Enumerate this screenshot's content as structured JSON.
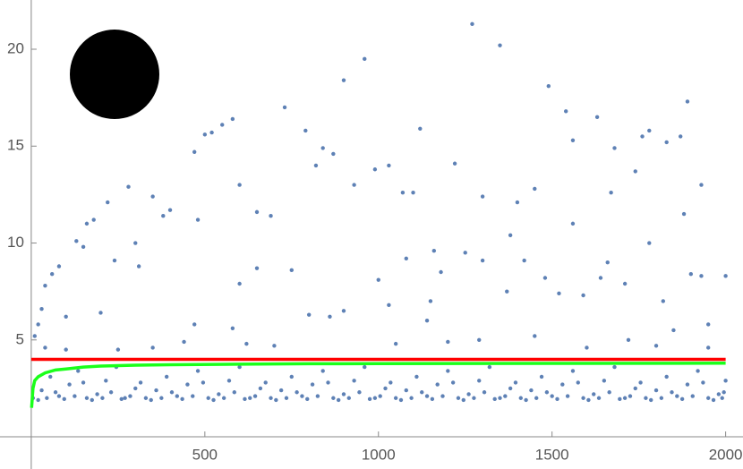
{
  "chart_data": {
    "type": "scatter",
    "xlim": [
      -90,
      2050
    ],
    "ylim": [
      -1.66,
      22.54
    ],
    "xticks": [
      500,
      1000,
      1500,
      2000
    ],
    "yticks": [
      5,
      10,
      15,
      20
    ],
    "series": [
      {
        "type": "scatter",
        "color": "#5e81b5",
        "x": [
          1270,
          1350,
          960,
          900,
          1490,
          1890,
          730,
          1540,
          1630,
          580,
          550,
          520,
          500,
          1120,
          790,
          1780,
          1760,
          1870,
          1830,
          1560,
          840,
          870,
          470,
          1220,
          820,
          990,
          1030,
          1680,
          1740,
          930,
          280,
          600,
          1930,
          1070,
          1100,
          1300,
          1670,
          350,
          220,
          1400,
          1450,
          650,
          690,
          380,
          400,
          480,
          160,
          180,
          1560,
          1880,
          1380,
          130,
          150,
          300,
          1780,
          1080,
          1160,
          1250,
          1300,
          1420,
          1660,
          1900,
          1930,
          2000,
          1710,
          1640,
          80,
          60,
          40,
          240,
          310,
          650,
          750,
          1180,
          1480,
          1000,
          600,
          800,
          860,
          1030,
          1150,
          1370,
          1520,
          1590,
          1820,
          30,
          20,
          10,
          100,
          200,
          470,
          580,
          900,
          1140,
          1290,
          1950,
          1720,
          1850,
          40,
          100,
          250,
          350,
          440,
          620,
          700,
          1050,
          1200,
          1450,
          1600,
          1800,
          1950,
          5,
          30,
          55,
          80,
          110,
          135,
          160,
          190,
          215,
          245,
          270,
          300,
          330,
          360,
          390,
          420,
          450,
          480,
          510,
          540,
          570,
          600,
          630,
          660,
          690,
          720,
          750,
          780,
          810,
          840,
          870,
          900,
          930,
          960,
          990,
          1020,
          1050,
          1080,
          1110,
          1140,
          1170,
          1200,
          1230,
          1260,
          1290,
          1320,
          1350,
          1380,
          1410,
          1440,
          1470,
          1500,
          1530,
          1560,
          1590,
          1620,
          1650,
          1680,
          1710,
          1740,
          1770,
          1800,
          1830,
          1860,
          1890,
          1920,
          1950,
          1980,
          2000,
          20,
          45,
          70,
          95,
          125,
          150,
          175,
          205,
          230,
          260,
          285,
          315,
          345,
          375,
          405,
          435,
          465,
          495,
          525,
          555,
          585,
          615,
          645,
          675,
          705,
          735,
          765,
          795,
          825,
          855,
          885,
          915,
          945,
          975,
          1005,
          1035,
          1065,
          1095,
          1125,
          1155,
          1185,
          1215,
          1245,
          1275,
          1305,
          1335,
          1365,
          1395,
          1425,
          1455,
          1485,
          1515,
          1545,
          1575,
          1605,
          1635,
          1665,
          1695,
          1725,
          1755,
          1785,
          1815,
          1845,
          1875,
          1905,
          1935,
          1965,
          1990,
          1995
        ],
        "values": [
          21.3,
          20.2,
          19.5,
          18.4,
          18.1,
          17.3,
          17,
          16.8,
          16.5,
          16.4,
          16.1,
          15.7,
          15.6,
          15.9,
          15.8,
          15.8,
          15.5,
          15.5,
          15.2,
          15.3,
          14.9,
          14.6,
          14.7,
          14.1,
          14,
          13.8,
          14,
          14.9,
          13.7,
          13,
          12.9,
          13,
          13,
          12.6,
          12.6,
          12.4,
          12.6,
          12.4,
          12.1,
          12.1,
          12.8,
          11.6,
          11.4,
          11.4,
          11.7,
          11.2,
          11,
          11.2,
          11,
          11.5,
          10.4,
          10.1,
          9.8,
          10,
          10,
          9.2,
          9.6,
          9.5,
          9.1,
          9.1,
          9,
          8.4,
          8.3,
          8.3,
          7.9,
          8.2,
          8.8,
          8.4,
          7.8,
          9.1,
          8.8,
          8.7,
          8.6,
          8.5,
          8.2,
          8.1,
          7.9,
          6.3,
          6.2,
          6.8,
          7,
          7.5,
          7.4,
          7.3,
          7,
          6.6,
          5.8,
          5.2,
          6.2,
          6.4,
          5.8,
          5.6,
          6.5,
          6,
          5,
          5.8,
          5,
          5.5,
          4.6,
          4.5,
          4.5,
          4.6,
          4.9,
          4.8,
          4.7,
          4.8,
          4.9,
          5.2,
          4.6,
          4.7,
          4.6,
          2.0,
          2.4,
          3.1,
          2.1,
          2.7,
          3.4,
          2.0,
          2.2,
          2.9,
          3.6,
          2.0,
          2.5,
          2.0,
          2.4,
          3.1,
          2.1,
          2.7,
          3.4,
          2.0,
          2.2,
          2.9,
          3.6,
          2.0,
          2.5,
          2.0,
          2.4,
          3.1,
          2.1,
          2.7,
          3.4,
          2.0,
          2.2,
          2.9,
          3.6,
          2.0,
          2.5,
          2.0,
          2.4,
          3.1,
          2.1,
          2.7,
          3.4,
          2.0,
          2.2,
          2.9,
          3.6,
          2.0,
          2.5,
          2.0,
          2.4,
          3.1,
          2.1,
          2.7,
          3.4,
          2.0,
          2.2,
          2.9,
          3.6,
          2.0,
          2.5,
          2.0,
          2.4,
          3.1,
          2.1,
          2.7,
          3.4,
          2.0,
          2.2,
          2.9,
          1.9,
          2.0,
          2.3,
          1.95,
          2.1,
          2.8,
          1.9,
          2.0,
          2.3,
          1.95,
          2.1,
          2.8,
          1.9,
          2.0,
          2.3,
          1.95,
          2.1,
          2.8,
          1.9,
          2.0,
          2.3,
          1.95,
          2.1,
          2.8,
          1.9,
          2.0,
          2.3,
          1.95,
          2.1,
          2.8,
          1.9,
          2.0,
          2.3,
          1.95,
          2.1,
          2.8,
          1.9,
          2.0,
          2.3,
          1.95,
          2.1,
          2.8,
          1.9,
          2.0,
          2.3,
          1.95,
          2.1,
          2.8,
          1.9,
          2.0,
          2.3,
          1.95,
          2.1,
          2.8,
          1.9,
          2.0,
          2.3,
          1.95,
          2.1,
          2.8,
          1.9,
          2.0,
          2.3,
          1.95,
          2.1,
          2.8,
          1.9,
          2.0,
          2.3
        ]
      },
      {
        "type": "line",
        "color": "#ff0000",
        "x": [
          0,
          2000
        ],
        "values": [
          4,
          4
        ]
      },
      {
        "type": "line",
        "color": "#1aff1a",
        "x": [
          1,
          5,
          10,
          20,
          40,
          70,
          100,
          150,
          200,
          300,
          400,
          600,
          800,
          1000,
          1500,
          2000
        ],
        "values": [
          1.5,
          2.5,
          2.9,
          3.1,
          3.3,
          3.45,
          3.5,
          3.6,
          3.65,
          3.7,
          3.72,
          3.75,
          3.77,
          3.78,
          3.79,
          3.8
        ]
      }
    ]
  }
}
